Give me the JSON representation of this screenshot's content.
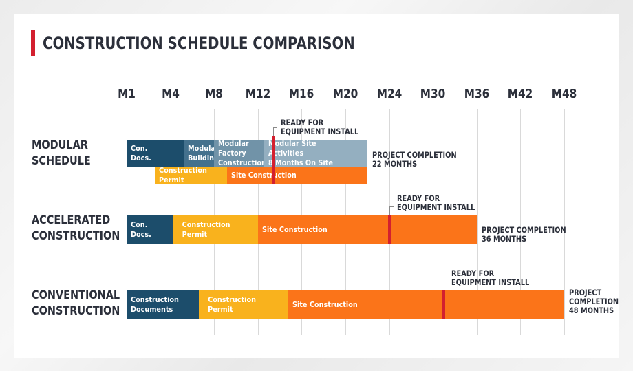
{
  "title": "CONSTRUCTION SCHEDULE COMPARISON",
  "chart_data": {
    "type": "gantt",
    "x_ticks": [
      "M1",
      "M4",
      "M8",
      "M12",
      "M16",
      "M20",
      "M24",
      "M30",
      "M36",
      "M42",
      "M48"
    ],
    "rows": [
      {
        "label": "MODULAR\nSCHEDULE",
        "tracks": [
          [
            {
              "label": "Con.\nDocs.",
              "start": 0,
              "end": 1.3,
              "color": "#1c4d6b"
            },
            {
              "label": "Modular\nBuilding",
              "start": 1.3,
              "end": 2.0,
              "color": "#44718d"
            },
            {
              "label": "Modular Factory\nConstruction",
              "start": 2.0,
              "end": 3.15,
              "color": "#7193a8"
            },
            {
              "label": "Modular Site Activities\n8 Months On Site",
              "start": 3.15,
              "end": 5.5,
              "color": "#94afc0"
            }
          ],
          [
            {
              "label": "Construction Permit",
              "start": 0.65,
              "end": 2.3,
              "color": "#f9b21d"
            },
            {
              "label": "Site Construction",
              "start": 2.3,
              "end": 5.5,
              "color": "#fb7419"
            }
          ]
        ],
        "marker": 3.35,
        "marker_label": "READY FOR\nEQUIPMENT INSTALL",
        "completion": "PROJECT COMPLETION\n22 MONTHS"
      },
      {
        "label": "ACCELERATED\nCONSTRUCTION",
        "tracks": [
          [
            {
              "label": "Con.\nDocs.",
              "start": 0,
              "end": 1.07,
              "color": "#1c4d6b"
            },
            {
              "label": "Construction Permit",
              "start": 1.07,
              "end": 3.0,
              "color": "#f9b21d"
            },
            {
              "label": "Site Construction",
              "start": 3.0,
              "end": 8.0,
              "color": "#fb7419"
            }
          ]
        ],
        "marker": 6.0,
        "marker_label": "READY FOR\nEQUIPMENT INSTALL",
        "completion": "PROJECT COMPLETION\n36 MONTHS"
      },
      {
        "label": "CONVENTIONAL\nCONSTRUCTION",
        "tracks": [
          [
            {
              "label": "Construction\nDocuments",
              "start": 0,
              "end": 1.65,
              "color": "#1c4d6b"
            },
            {
              "label": "Construction Permit",
              "start": 1.65,
              "end": 3.7,
              "color": "#f9b21d"
            },
            {
              "label": "Site Construction",
              "start": 3.7,
              "end": 10.0,
              "color": "#fb7419"
            }
          ]
        ],
        "marker": 7.25,
        "marker_label": "READY FOR\nEQUIPMENT INSTALL",
        "completion": "PROJECT\nCOMPLETION\n48 MONTHS"
      }
    ]
  }
}
